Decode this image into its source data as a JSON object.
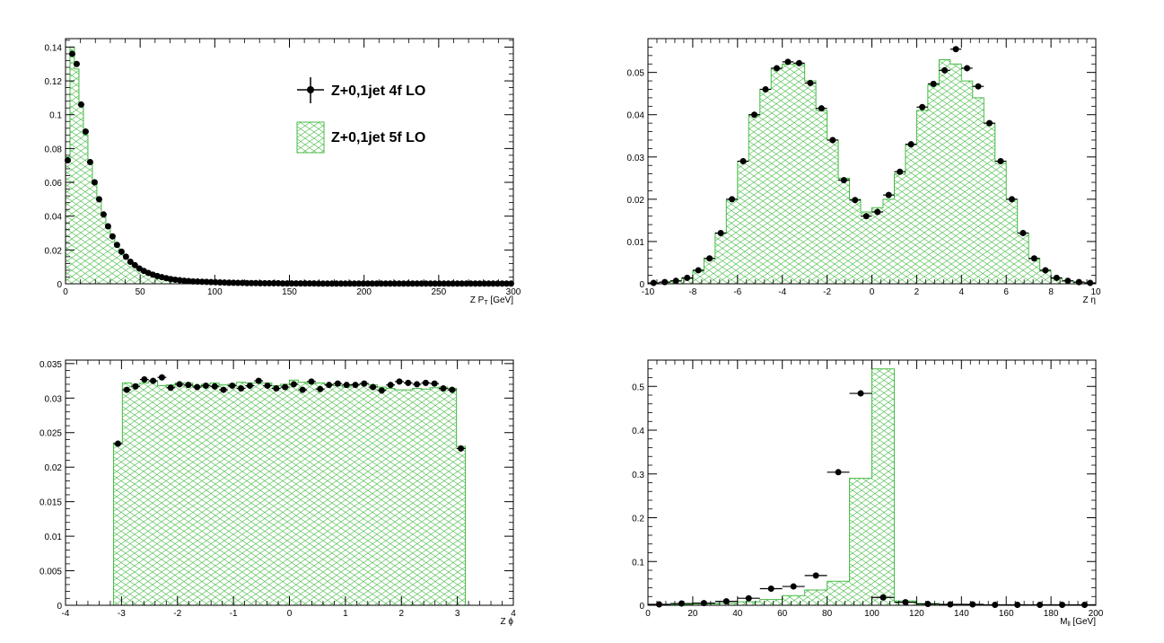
{
  "colors": {
    "hist_line": "#44bb44",
    "points": "#000000",
    "frame": "#000000"
  },
  "legend": {
    "entries": [
      {
        "label": "Z+0,1jet 4f LO",
        "style": "points"
      },
      {
        "label": "Z+0,1jet 5f LO",
        "style": "hatched-hist"
      }
    ]
  },
  "chart_data": [
    {
      "type": "bar",
      "xlabel": "Z P_{T} [GeV]",
      "xlabel_main": "Z P",
      "xlabel_sub": "T",
      "xlabel_tail": " [GeV]",
      "xlim": [
        0,
        300
      ],
      "ylim": [
        0,
        0.145
      ],
      "xticks": [
        0,
        50,
        100,
        150,
        200,
        250,
        300
      ],
      "yticks": [
        0,
        0.02,
        0.04,
        0.06,
        0.08,
        0.1,
        0.12,
        0.14
      ],
      "ytick_labels": [
        "0",
        "0.02",
        "0.04",
        "0.06",
        "0.08",
        "0.1",
        "0.12",
        "0.14"
      ],
      "xtick_labels": [
        "0",
        "50",
        "100",
        "150",
        "200",
        "250",
        "300"
      ],
      "bin_width": 3,
      "bin_start": 0,
      "hist_values": [
        0.075,
        0.14,
        0.127,
        0.105,
        0.088,
        0.072,
        0.06,
        0.05,
        0.041,
        0.034,
        0.028,
        0.023,
        0.019,
        0.016,
        0.013,
        0.011,
        0.009,
        0.0075,
        0.0063,
        0.0053,
        0.0045,
        0.0038,
        0.0032,
        0.0027,
        0.0023,
        0.002,
        0.0018,
        0.0016,
        0.0014,
        0.0013,
        0.0012,
        0.0011,
        0.001,
        0.0009,
        0.0008,
        0.0007,
        0.0006,
        0.0006,
        0.0005,
        0.0005,
        0.0004,
        0.0004,
        0.0004,
        0.0003,
        0.0003,
        0.0003,
        0.0003,
        0.0003,
        0.0002,
        0.0002,
        0.0002,
        0.0002,
        0.0002,
        0.0002,
        0.0002,
        0.0002,
        0.0001,
        0.0001,
        0.0001,
        0.0001,
        0.0001,
        0.0001,
        0.0001,
        0.0001,
        0.0001,
        0.0001,
        0.0001,
        0.0001,
        0.0001,
        0.0001,
        0.0001,
        0.0001,
        0.0001,
        0.0001,
        0.0001,
        0.0001,
        0.0001,
        0.0001,
        0.0001,
        0.0001,
        0.0001,
        0.0001,
        0.0001,
        0.0001,
        0.0001,
        0.0001,
        0.0001,
        0.0001,
        0.0001,
        0.0001,
        0.0001,
        0.0001,
        0.0001,
        0.0001,
        0.0001,
        0.0001,
        0.0001,
        0.0001,
        0.0001,
        0.0001
      ],
      "points_x": [
        1.5,
        4.5,
        7.5,
        10.5,
        13.5,
        16.5,
        19.5,
        22.5,
        25.5,
        28.5,
        31.5,
        34.5,
        37.5,
        40.5,
        43.5,
        46.5,
        49.5,
        52.5,
        55.5,
        58.5,
        61.5,
        64.5,
        67.5,
        70.5,
        73.5,
        76.5,
        79.5,
        82.5,
        85.5,
        88.5,
        91.5,
        94.5,
        97.5,
        100.5,
        103.5,
        106.5,
        109.5,
        112.5,
        115.5,
        118.5,
        121.5,
        124.5,
        127.5,
        130.5,
        133.5,
        136.5,
        139.5,
        142.5,
        145.5,
        148.5,
        151.5,
        154.5,
        157.5,
        160.5,
        163.5,
        166.5,
        169.5,
        172.5,
        175.5,
        178.5,
        181.5,
        184.5,
        187.5,
        190.5,
        193.5,
        196.5,
        199.5,
        202.5,
        205.5,
        208.5,
        211.5,
        214.5,
        217.5,
        220.5,
        223.5,
        226.5,
        229.5,
        232.5,
        235.5,
        238.5,
        241.5,
        244.5,
        247.5,
        250.5,
        253.5,
        256.5,
        259.5,
        262.5,
        265.5,
        268.5,
        271.5,
        274.5,
        277.5,
        280.5,
        283.5,
        286.5,
        289.5,
        292.5,
        295.5,
        298.5
      ],
      "points_y": [
        0.073,
        0.136,
        0.13,
        0.106,
        0.09,
        0.072,
        0.06,
        0.05,
        0.041,
        0.034,
        0.028,
        0.023,
        0.019,
        0.016,
        0.013,
        0.011,
        0.009,
        0.0076,
        0.0064,
        0.0054,
        0.0046,
        0.0039,
        0.0033,
        0.0028,
        0.0024,
        0.0021,
        0.0018,
        0.0016,
        0.0014,
        0.0013,
        0.0012,
        0.0011,
        0.001,
        0.0009,
        0.0008,
        0.0007,
        0.0006,
        0.0006,
        0.0005,
        0.0005,
        0.0004,
        0.0004,
        0.0004,
        0.0003,
        0.0003,
        0.0003,
        0.0003,
        0.0003,
        0.0002,
        0.0002,
        0.0002,
        0.0002,
        0.0002,
        0.0002,
        0.0002,
        0.0002,
        0.0001,
        0.0001,
        0.0001,
        0.0001,
        0.0001,
        0.0001,
        0.0001,
        0.0001,
        0.0001,
        0.0001,
        0.0001,
        0.0001,
        0.0001,
        0.0001,
        0.0001,
        0.0001,
        0.0001,
        0.0001,
        0.0001,
        0.0001,
        0.0001,
        0.0001,
        0.0001,
        0.0001,
        0.0001,
        0.0001,
        0.0001,
        0.0001,
        0.0001,
        0.0001,
        0.0001,
        0.0001,
        0.0001,
        0.0001,
        0.0001,
        0.0001,
        0.0001,
        0.0001,
        0.0001,
        0.0001,
        0.0001,
        0.0001,
        0.0001,
        0.0001
      ]
    },
    {
      "type": "bar",
      "xlabel": "Z η",
      "xlim": [
        -10,
        10
      ],
      "ylim": [
        0,
        0.058
      ],
      "xticks": [
        -10,
        -8,
        -6,
        -4,
        -2,
        0,
        2,
        4,
        6,
        8,
        10
      ],
      "xtick_labels": [
        "-10",
        "-8",
        "-6",
        "-4",
        "-2",
        "0",
        "2",
        "4",
        "6",
        "8",
        "10"
      ],
      "yticks": [
        0,
        0.01,
        0.02,
        0.03,
        0.04,
        0.05
      ],
      "ytick_labels": [
        "0",
        "0.01",
        "0.02",
        "0.03",
        "0.04",
        "0.05"
      ],
      "bin_width": 0.5,
      "bin_start": -10,
      "hist_values": [
        0.0002,
        0.0003,
        0.0006,
        0.0012,
        0.003,
        0.006,
        0.012,
        0.02,
        0.029,
        0.04,
        0.046,
        0.051,
        0.052,
        0.052,
        0.048,
        0.041,
        0.034,
        0.025,
        0.02,
        0.017,
        0.018,
        0.02,
        0.026,
        0.033,
        0.041,
        0.047,
        0.053,
        0.052,
        0.048,
        0.044,
        0.038,
        0.029,
        0.02,
        0.012,
        0.006,
        0.003,
        0.0012,
        0.0006,
        0.0003,
        0.0002
      ],
      "points_x": [
        -9.75,
        -9.25,
        -8.75,
        -8.25,
        -7.75,
        -7.25,
        -6.75,
        -6.25,
        -5.75,
        -5.25,
        -4.75,
        -4.25,
        -3.75,
        -3.25,
        -2.75,
        -2.25,
        -1.75,
        -1.25,
        -0.75,
        -0.25,
        0.25,
        0.75,
        1.25,
        1.75,
        2.25,
        2.75,
        3.25,
        3.75,
        4.25,
        4.75,
        5.25,
        5.75,
        6.25,
        6.75,
        7.25,
        7.75,
        8.25,
        8.75,
        9.25,
        9.75
      ],
      "points_y": [
        0.0002,
        0.0004,
        0.0007,
        0.0014,
        0.0032,
        0.006,
        0.012,
        0.02,
        0.029,
        0.04,
        0.046,
        0.051,
        0.0525,
        0.0522,
        0.0475,
        0.0415,
        0.034,
        0.0245,
        0.0198,
        0.016,
        0.017,
        0.021,
        0.0265,
        0.033,
        0.0418,
        0.0473,
        0.0505,
        0.0555,
        0.051,
        0.0467,
        0.038,
        0.029,
        0.02,
        0.012,
        0.006,
        0.0032,
        0.0014,
        0.0007,
        0.0004,
        0.0002
      ]
    },
    {
      "type": "bar",
      "xlabel": "Z ϕ",
      "xlim": [
        -4,
        4
      ],
      "ylim": [
        0,
        0.0355
      ],
      "xticks": [
        -4,
        -3,
        -2,
        -1,
        0,
        1,
        2,
        3,
        4
      ],
      "xtick_labels": [
        "-4",
        "-3",
        "-2",
        "-1",
        "0",
        "1",
        "2",
        "3",
        "4"
      ],
      "yticks": [
        0,
        0.005,
        0.01,
        0.015,
        0.02,
        0.025,
        0.03,
        0.035
      ],
      "ytick_labels": [
        "0",
        "0.005",
        "0.01",
        "0.015",
        "0.02",
        "0.025",
        "0.03",
        "0.035"
      ],
      "bin_width": 0.15708,
      "bin_start": -3.14159,
      "hist_values": [
        0.0235,
        0.0322,
        0.032,
        0.0322,
        0.0325,
        0.0318,
        0.0319,
        0.0322,
        0.0322,
        0.0318,
        0.032,
        0.0322,
        0.0319,
        0.032,
        0.0323,
        0.0322,
        0.0322,
        0.0322,
        0.0318,
        0.032,
        0.0326,
        0.0323,
        0.0321,
        0.0322,
        0.032,
        0.0318,
        0.0316,
        0.032,
        0.0321,
        0.0319,
        0.0316,
        0.0314,
        0.0312,
        0.0312,
        0.0314,
        0.0313,
        0.0315,
        0.0316,
        0.0314,
        0.023
      ],
      "points_x": [
        -3.0631,
        -2.906,
        -2.7489,
        -2.5918,
        -2.4347,
        -2.2777,
        -2.1206,
        -1.9635,
        -1.8064,
        -1.6493,
        -1.4923,
        -1.3352,
        -1.1781,
        -1.021,
        -0.8639,
        -0.7069,
        -0.5498,
        -0.3927,
        -0.2356,
        -0.0785,
        0.0785,
        0.2356,
        0.3927,
        0.5498,
        0.7069,
        0.8639,
        1.021,
        1.1781,
        1.3352,
        1.4923,
        1.6493,
        1.8064,
        1.9635,
        2.1206,
        2.2777,
        2.4347,
        2.5918,
        2.7489,
        2.906,
        3.0631
      ],
      "points_y": [
        0.0234,
        0.0312,
        0.0317,
        0.0327,
        0.0325,
        0.033,
        0.0315,
        0.032,
        0.0319,
        0.0316,
        0.0318,
        0.0317,
        0.0312,
        0.0318,
        0.0314,
        0.0318,
        0.0325,
        0.0318,
        0.0314,
        0.0316,
        0.032,
        0.0312,
        0.0324,
        0.0313,
        0.0319,
        0.0321,
        0.0319,
        0.0319,
        0.0321,
        0.0316,
        0.0311,
        0.0319,
        0.0324,
        0.0322,
        0.032,
        0.0322,
        0.0321,
        0.0314,
        0.0312,
        0.0227
      ]
    },
    {
      "type": "bar",
      "xlabel": "M_{ll} [GeV]",
      "xlabel_main": "M",
      "xlabel_sub": "ll",
      "xlabel_tail": " [GeV]",
      "xlim": [
        0,
        200
      ],
      "ylim": [
        0,
        0.56
      ],
      "xticks": [
        0,
        20,
        40,
        60,
        80,
        100,
        120,
        140,
        160,
        180,
        200
      ],
      "xtick_labels": [
        "0",
        "20",
        "40",
        "60",
        "80",
        "100",
        "120",
        "140",
        "160",
        "180",
        "200"
      ],
      "yticks": [
        0,
        0.1,
        0.2,
        0.3,
        0.4,
        0.5
      ],
      "ytick_labels": [
        "0",
        "0.1",
        "0.2",
        "0.3",
        "0.4",
        "0.5"
      ],
      "bin_width": 10,
      "bin_start": 0,
      "hist_values": [
        0.001,
        0.002,
        0.003,
        0.005,
        0.008,
        0.013,
        0.022,
        0.035,
        0.055,
        0.29,
        0.54,
        0.01,
        0.004,
        0.002,
        0.001,
        0.001,
        0.001,
        0.0005,
        0.0005,
        0.0005
      ],
      "points_x": [
        5,
        15,
        25,
        35,
        45,
        55,
        65,
        75,
        85,
        95,
        105,
        115,
        125,
        135,
        145,
        155,
        165,
        175,
        185,
        195
      ],
      "points_y": [
        0.002,
        0.004,
        0.005,
        0.009,
        0.016,
        0.038,
        0.043,
        0.068,
        0.304,
        0.484,
        0.018,
        0.007,
        0.003,
        0.002,
        0.002,
        0.001,
        0.001,
        0.001,
        0.001,
        0.001
      ]
    }
  ]
}
